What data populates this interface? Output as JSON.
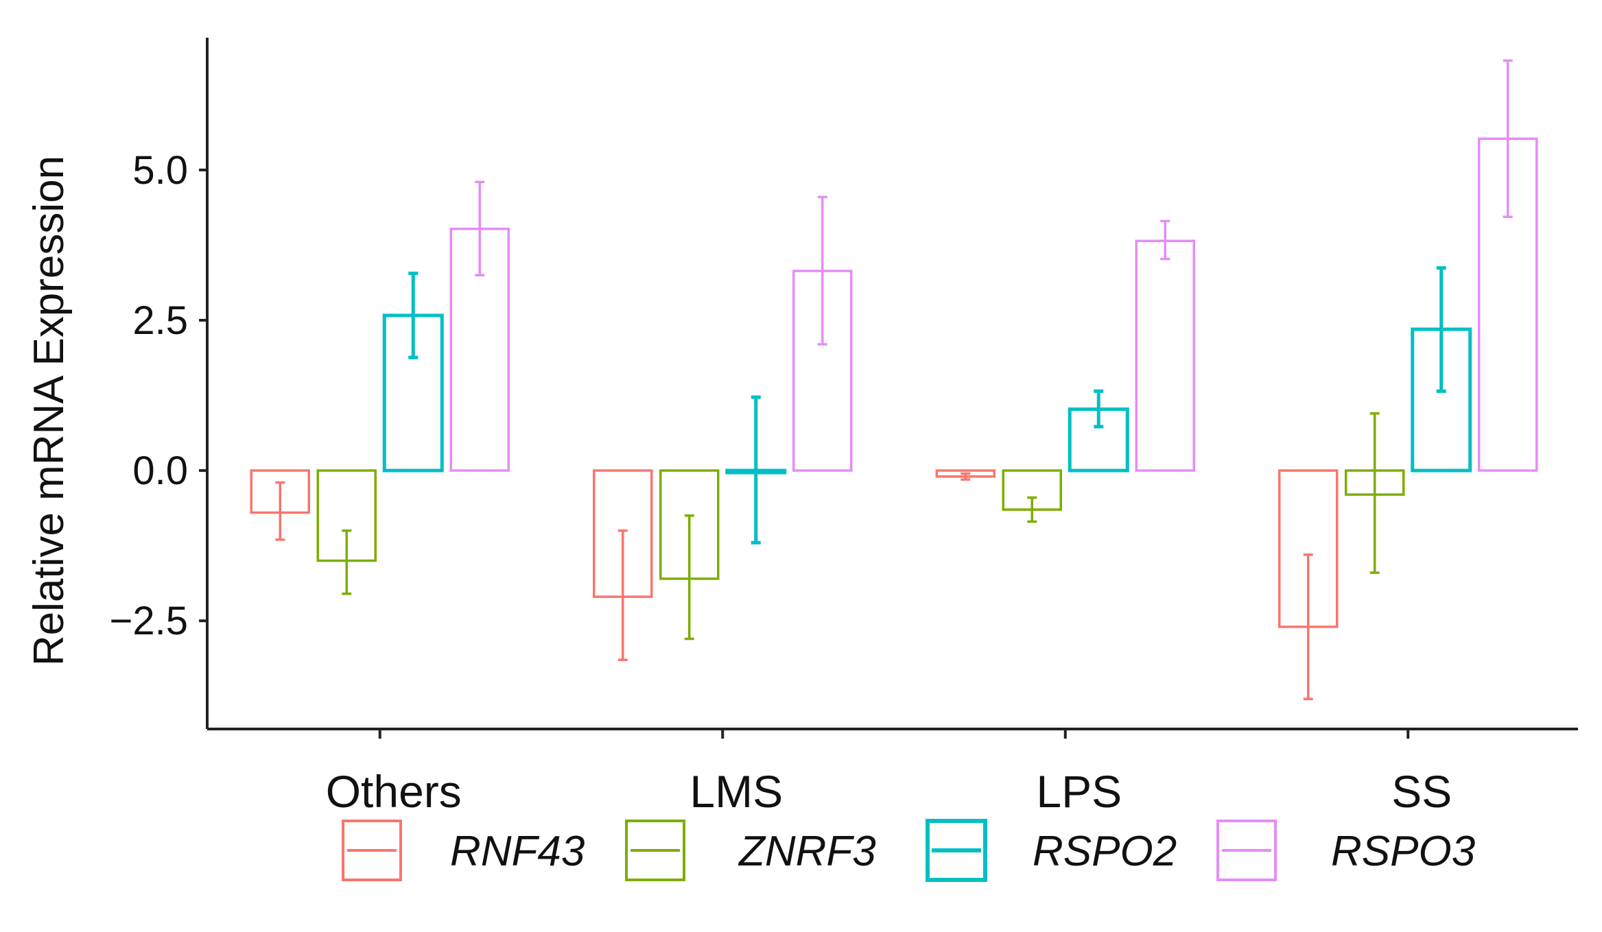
{
  "chart_data": {
    "type": "bar",
    "title": "",
    "xlabel": "",
    "ylabel": "Relative mRNA Expression",
    "ylim": [
      -4.3,
      7.2
    ],
    "yticks": [
      -2.5,
      0.0,
      2.5,
      5.0
    ],
    "ytick_labels": [
      "−2.5",
      "0.0",
      "2.5",
      "5.0"
    ],
    "categories": [
      "Others",
      "LMS",
      "LPS",
      "SS"
    ],
    "series": [
      {
        "name": "RNF43",
        "color": "#F8766D",
        "values": [
          -0.7,
          -2.1,
          -0.1,
          -2.6
        ],
        "error_low": [
          -1.15,
          -3.15,
          -0.15,
          -3.8
        ],
        "error_high": [
          -0.2,
          -1.0,
          -0.05,
          -1.4
        ]
      },
      {
        "name": "ZNRF3",
        "color": "#7CAE00",
        "values": [
          -1.5,
          -1.8,
          -0.65,
          -0.4
        ],
        "error_low": [
          -2.05,
          -2.8,
          -0.85,
          -1.7
        ],
        "error_high": [
          -1.0,
          -0.75,
          -0.45,
          0.95
        ]
      },
      {
        "name": "RSPO2",
        "color": "#00BFC4",
        "values": [
          2.58,
          0.0,
          1.02,
          2.35
        ],
        "error_low": [
          1.88,
          -1.2,
          0.73,
          1.32
        ],
        "error_high": [
          3.28,
          1.22,
          1.32,
          3.37
        ]
      },
      {
        "name": "RSPO3",
        "color": "#E58CF7",
        "values": [
          4.02,
          3.32,
          3.82,
          5.52
        ],
        "error_low": [
          3.25,
          2.1,
          3.52,
          4.22
        ],
        "error_high": [
          4.8,
          4.55,
          4.15,
          6.82
        ]
      }
    ],
    "grid": false,
    "legend_position": "bottom"
  }
}
